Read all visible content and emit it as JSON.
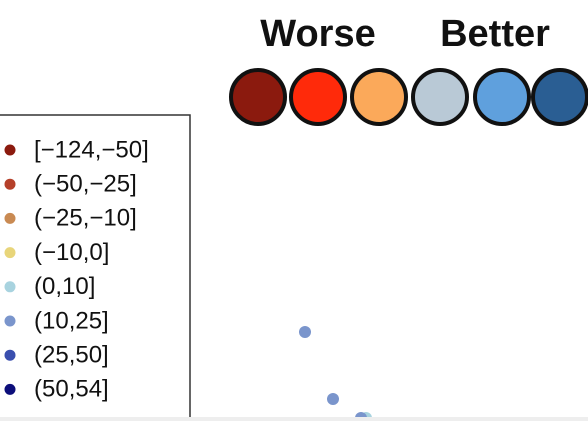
{
  "header": {
    "worse": "Worse",
    "better": "Better"
  },
  "scale": {
    "colors": [
      "#8b1a0e",
      "#ff2a0a",
      "#fba95a",
      "#b9c9d6",
      "#5fa0dd",
      "#2a5e93"
    ]
  },
  "legend": {
    "items": [
      {
        "label": "[−124,−50]",
        "color": "#8b1a0e"
      },
      {
        "label": "(−50,−25]",
        "color": "#b5402a"
      },
      {
        "label": "(−25,−10]",
        "color": "#c98a52"
      },
      {
        "label": "(−10,0]",
        "color": "#e8d57a"
      },
      {
        "label": "(0,10]",
        "color": "#a8d3df"
      },
      {
        "label": "(10,25]",
        "color": "#7a95cc"
      },
      {
        "label": "(25,50]",
        "color": "#3a4fae"
      },
      {
        "label": "(50,54]",
        "color": "#0c0e7a"
      }
    ]
  }
}
